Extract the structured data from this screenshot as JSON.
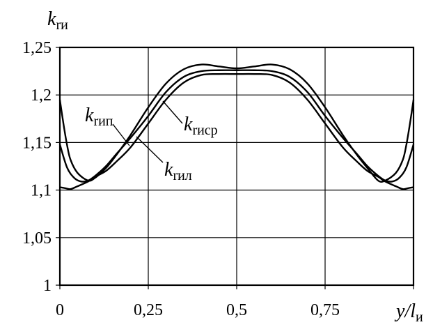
{
  "chart_data": {
    "type": "line",
    "title": "",
    "xlabel": {
      "main": "y/l",
      "sub": "и"
    },
    "ylabel": {
      "main": "k",
      "sub": "rи"
    },
    "xlim": [
      0,
      1
    ],
    "ylim": [
      1,
      1.25
    ],
    "grid": true,
    "x_ticks": [
      0,
      0.25,
      0.5,
      0.75,
      1
    ],
    "x_tick_labels": [
      "0",
      "0,25",
      "0,5",
      "0,75",
      ""
    ],
    "y_ticks": [
      1,
      1.05,
      1.1,
      1.15,
      1.2,
      1.25
    ],
    "y_tick_labels": [
      "1",
      "1,05",
      "1,1",
      "1,15",
      "1,2",
      "1,25"
    ],
    "series": [
      {
        "name": "k_rип",
        "label_main": "k",
        "label_sub": "rип",
        "x": [
          0,
          0.01,
          0.02,
          0.03,
          0.05,
          0.08,
          0.1,
          0.13,
          0.16,
          0.2,
          0.25,
          0.3,
          0.35,
          0.4,
          0.45,
          0.5,
          0.55,
          0.6,
          0.65,
          0.7,
          0.75,
          0.8,
          0.84,
          0.87,
          0.9,
          0.92,
          0.95,
          0.97,
          0.98,
          0.99,
          1.0
        ],
        "y": [
          1.195,
          1.17,
          1.148,
          1.132,
          1.118,
          1.11,
          1.113,
          1.123,
          1.137,
          1.158,
          1.187,
          1.212,
          1.227,
          1.232,
          1.23,
          1.228,
          1.23,
          1.232,
          1.227,
          1.212,
          1.187,
          1.158,
          1.137,
          1.123,
          1.11,
          1.11,
          1.118,
          1.132,
          1.148,
          1.17,
          1.195
        ]
      },
      {
        "name": "k_rиср",
        "label_main": "k",
        "label_sub": "rиср",
        "x": [
          0,
          0.02,
          0.04,
          0.06,
          0.08,
          0.1,
          0.13,
          0.16,
          0.2,
          0.25,
          0.3,
          0.35,
          0.4,
          0.45,
          0.5,
          0.55,
          0.6,
          0.65,
          0.7,
          0.75,
          0.8,
          0.84,
          0.87,
          0.9,
          0.92,
          0.94,
          0.96,
          0.98,
          1.0
        ],
        "y": [
          1.148,
          1.124,
          1.113,
          1.109,
          1.11,
          1.115,
          1.125,
          1.138,
          1.155,
          1.178,
          1.203,
          1.219,
          1.225,
          1.226,
          1.226,
          1.226,
          1.225,
          1.219,
          1.203,
          1.178,
          1.155,
          1.138,
          1.125,
          1.115,
          1.11,
          1.109,
          1.113,
          1.124,
          1.148
        ]
      },
      {
        "name": "k_rил",
        "label_main": "k",
        "label_sub": "rил",
        "x": [
          0,
          0.015,
          0.03,
          0.05,
          0.08,
          0.1,
          0.13,
          0.16,
          0.2,
          0.25,
          0.3,
          0.35,
          0.4,
          0.45,
          0.5,
          0.55,
          0.6,
          0.65,
          0.7,
          0.75,
          0.8,
          0.84,
          0.87,
          0.9,
          0.92,
          0.95,
          0.97,
          0.985,
          1.0
        ],
        "y": [
          1.103,
          1.102,
          1.101,
          1.104,
          1.109,
          1.114,
          1.12,
          1.13,
          1.145,
          1.17,
          1.195,
          1.213,
          1.221,
          1.222,
          1.222,
          1.222,
          1.221,
          1.213,
          1.195,
          1.17,
          1.145,
          1.13,
          1.12,
          1.114,
          1.109,
          1.104,
          1.101,
          1.102,
          1.103
        ]
      }
    ]
  }
}
